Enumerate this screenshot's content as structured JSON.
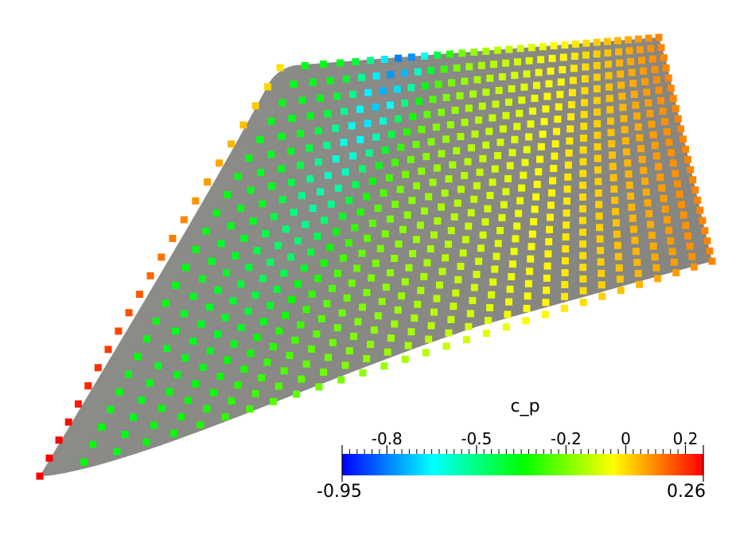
{
  "chart_data": {
    "type": "colorbar",
    "title": "c_p",
    "clim": [
      {
        "value": -0.95,
        "label": "-0.95"
      },
      {
        "value": 0.26,
        "label": "0.26"
      }
    ],
    "cticks": [
      -0.8,
      -0.5,
      -0.2,
      0,
      0.2
    ],
    "colors": [
      "#0000ff",
      "#00ffff",
      "#00ff00",
      "#ffff00",
      "#ff0000"
    ]
  }
}
